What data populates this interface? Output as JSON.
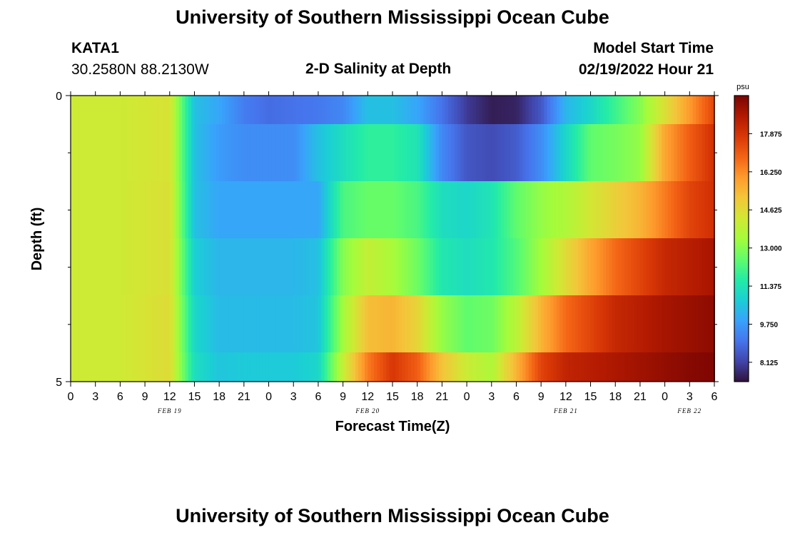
{
  "page": {
    "title": "University of Southern Mississippi Ocean Cube",
    "footer_title": "University of Southern Mississippi Ocean Cube"
  },
  "station": {
    "id": "KATA1",
    "coords": "30.2580N  88.2130W"
  },
  "model": {
    "label": "Model Start Time",
    "datetime": "02/19/2022 Hour 21"
  },
  "chart_data": {
    "type": "heatmap",
    "title": "2-D Salinity at Depth",
    "xlabel": "Forecast Time(Z)",
    "ylabel": "Depth (ft)",
    "x_ticks": [
      "0",
      "3",
      "6",
      "9",
      "12",
      "15",
      "18",
      "21",
      "0",
      "3",
      "6",
      "9",
      "12",
      "15",
      "18",
      "21",
      "0",
      "3",
      "6",
      "9",
      "12",
      "15",
      "18",
      "21",
      "0",
      "3",
      "6"
    ],
    "date_labels": [
      {
        "label": "FEB 19",
        "at_tick": 4
      },
      {
        "label": "FEB 20",
        "at_tick": 12
      },
      {
        "label": "FEB 21",
        "at_tick": 20
      },
      {
        "label": "FEB 22",
        "at_tick": 25
      }
    ],
    "y_ticks": [
      "0",
      "5"
    ],
    "ylim": [
      0,
      5
    ],
    "colorbar": {
      "unit": "psu",
      "min": 7.3,
      "max": 19.5,
      "ticks": [
        "17.875",
        "16.250",
        "14.625",
        "13.000",
        "11.375",
        "9.750",
        "8.125"
      ],
      "colors": [
        "#30123b",
        "#4145ab",
        "#4675ed",
        "#39a2fc",
        "#1bcfd4",
        "#24eca6",
        "#61fc6c",
        "#a4fc3b",
        "#d1e834",
        "#f3c63a",
        "#fe9b2d",
        "#f36315",
        "#d93806",
        "#b11901",
        "#7a0402"
      ]
    },
    "time_hours": [
      0,
      6,
      12,
      15,
      18,
      21,
      24,
      27,
      30,
      33,
      36,
      39,
      42,
      45,
      48,
      51,
      54,
      57,
      60,
      63,
      66,
      69,
      72,
      75,
      78
    ],
    "depth_layers": [
      "0-0.5",
      "0.5-1.5",
      "1.5-2.5",
      "2.5-3.5",
      "3.5-4.5",
      "4.5-5"
    ],
    "salinity": [
      [
        14.2,
        14.2,
        14.4,
        10.5,
        10.0,
        9.2,
        8.9,
        9.0,
        9.1,
        9.4,
        10.5,
        10.5,
        10.0,
        9.0,
        8.0,
        7.5,
        7.6,
        8.5,
        10.3,
        11.0,
        12.0,
        13.0,
        14.5,
        16.0,
        17.5
      ],
      [
        14.2,
        14.2,
        14.4,
        10.5,
        9.8,
        9.5,
        9.5,
        9.5,
        10.5,
        11.2,
        11.8,
        11.8,
        11.4,
        9.4,
        8.5,
        8.3,
        8.6,
        9.5,
        11.0,
        12.5,
        12.8,
        13.2,
        15.8,
        17.0,
        18.0
      ],
      [
        14.2,
        14.2,
        14.5,
        10.5,
        10.0,
        10.0,
        10.0,
        10.0,
        10.0,
        12.2,
        12.6,
        12.6,
        12.2,
        11.2,
        11.0,
        11.4,
        12.5,
        13.2,
        13.6,
        14.3,
        14.9,
        15.5,
        16.5,
        17.5,
        18.0
      ],
      [
        14.2,
        14.2,
        14.5,
        10.8,
        10.3,
        10.3,
        10.3,
        10.3,
        10.5,
        13.0,
        14.0,
        13.5,
        12.7,
        11.5,
        11.2,
        11.5,
        12.3,
        13.4,
        14.6,
        15.8,
        16.8,
        17.5,
        18.2,
        18.5,
        18.8
      ],
      [
        14.2,
        14.2,
        14.6,
        11.0,
        10.4,
        10.4,
        10.4,
        10.4,
        10.6,
        13.4,
        15.3,
        15.5,
        14.8,
        13.2,
        12.5,
        12.7,
        13.8,
        15.5,
        16.8,
        17.5,
        18.2,
        18.5,
        18.8,
        19.0,
        19.2
      ],
      [
        14.2,
        14.2,
        14.6,
        11.2,
        10.6,
        10.7,
        10.7,
        10.7,
        11.0,
        14.0,
        16.5,
        17.8,
        17.0,
        15.2,
        14.1,
        13.6,
        15.5,
        17.5,
        18.3,
        18.5,
        18.7,
        18.9,
        19.1,
        19.3,
        19.4
      ]
    ]
  }
}
